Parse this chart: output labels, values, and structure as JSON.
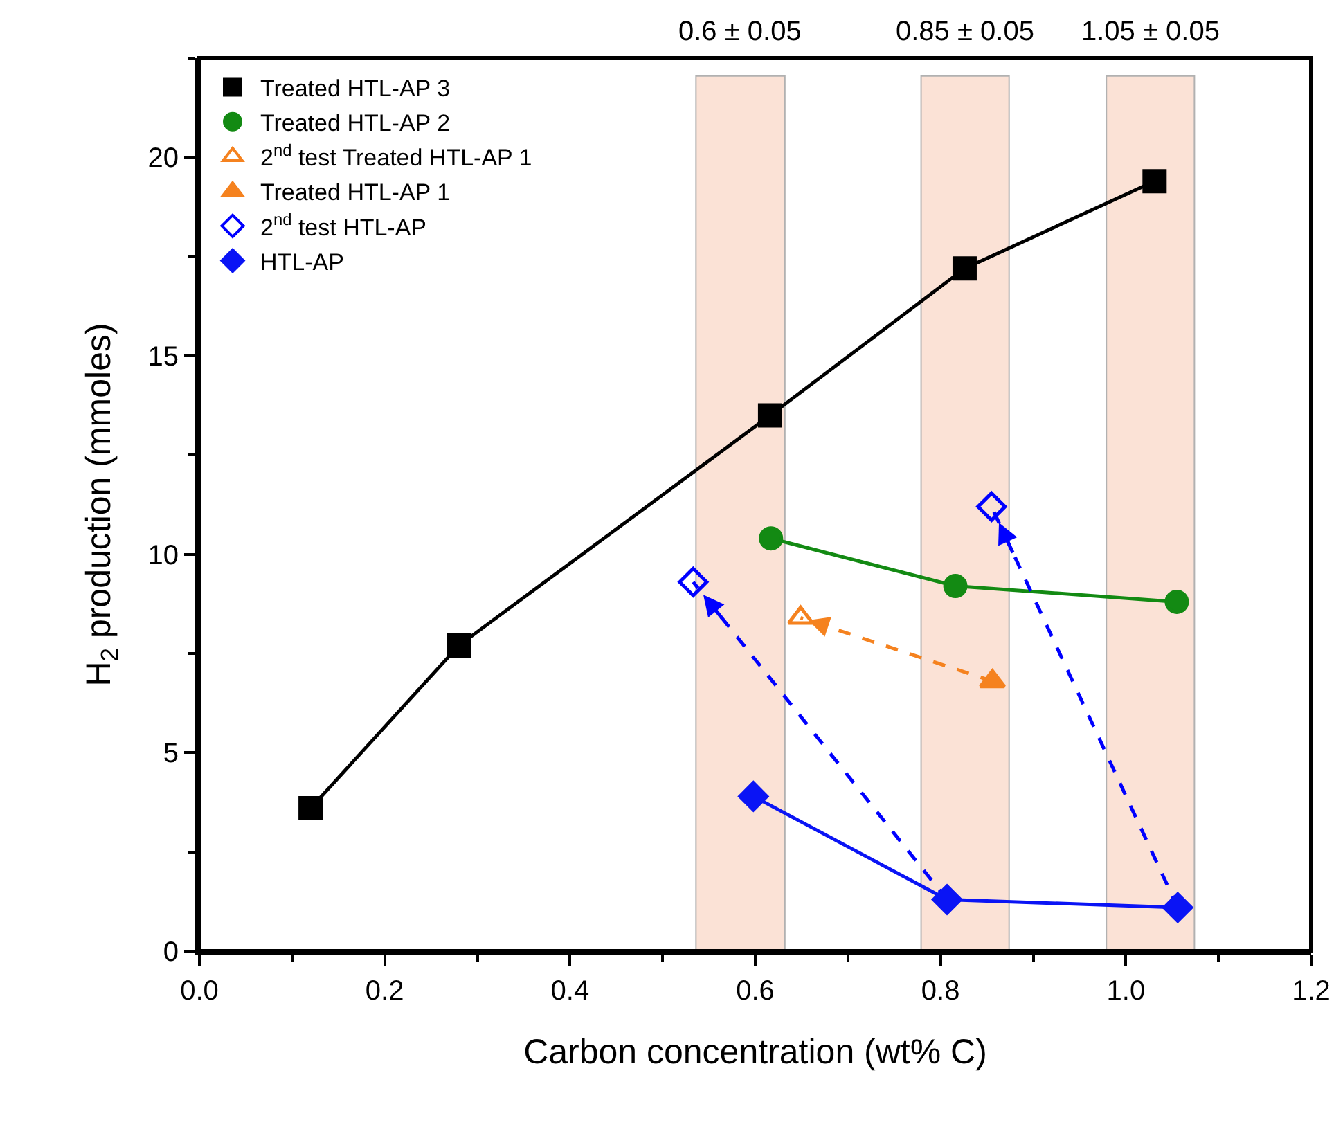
{
  "chart_data": {
    "type": "line",
    "xlabel": "Carbon concentration (wt% C)",
    "ylabel": "H$_{2}$ production (mmoles)",
    "xlim": [
      0,
      1.2
    ],
    "xticks": [
      {
        "value": 0,
        "label": "0.0"
      },
      {
        "value": 0.2,
        "label": "0.2"
      },
      {
        "value": 0.4,
        "label": "0.4"
      },
      {
        "value": 0.6,
        "label": "0.6"
      },
      {
        "value": 0.8,
        "label": "0.8"
      },
      {
        "value": 1.0,
        "label": "1.0"
      },
      {
        "value": 1.2,
        "label": "1.2"
      }
    ],
    "ylim": [
      0,
      22.5
    ],
    "yticks": [
      0,
      5,
      10,
      15,
      20
    ],
    "grid": false,
    "legend": "top left",
    "series": [
      {
        "name": "Treated HTL-AP 3",
        "color": "#000000",
        "marker": "square",
        "line_style": "solid",
        "x": [
          0.12,
          0.28,
          0.616,
          0.826,
          1.031
        ],
        "values": [
          3.6,
          7.7,
          13.5,
          17.2,
          19.4
        ]
      },
      {
        "name": "Treated HTL-AP 2",
        "color": "#138a13",
        "marker": "circle",
        "line_style": "solid",
        "x": [
          0.617,
          0.816,
          1.055
        ],
        "values": [
          10.4,
          9.2,
          8.8
        ]
      },
      {
        "name": "2$^{nd}$ test Treated HTL-AP 1",
        "color": "#f5821f",
        "marker": "triangle-open",
        "line_style": "dashed",
        "x": [
          0.856,
          0.649
        ],
        "values": [
          6.8,
          8.4
        ]
      },
      {
        "name": "Treated HTL-AP 1",
        "color": "#f5821f",
        "marker": "triangle",
        "line_style": "none",
        "x": [
          0.856
        ],
        "values": [
          6.8
        ]
      },
      {
        "name": "2$^{nd}$ test HTL-AP",
        "color": "#0000ff",
        "marker": "diamond-open",
        "line_style": "dashed",
        "x": [
          0.807,
          0.533,
          null,
          1.056,
          0.855
        ],
        "values": [
          1.3,
          9.3,
          null,
          1.1,
          11.2
        ]
      },
      {
        "name": "HTL-AP",
        "color": "#0a14f5",
        "marker": "diamond",
        "line_style": "solid",
        "x": [
          0.598,
          0.807,
          1.056
        ],
        "values": [
          3.9,
          1.3,
          1.1
        ]
      }
    ],
    "bands": [
      {
        "axis": "x",
        "from": 0.536,
        "to": 0.632,
        "label": "0.6 ± 0.05",
        "color": "#f5a07a"
      },
      {
        "axis": "x",
        "from": 0.779,
        "to": 0.874,
        "label": "0.85 ± 0.05",
        "color": "#f5a07a"
      },
      {
        "axis": "x",
        "from": 0.979,
        "to": 1.074,
        "label": "1.05 ± 0.05",
        "color": "#f5a07a"
      }
    ]
  }
}
